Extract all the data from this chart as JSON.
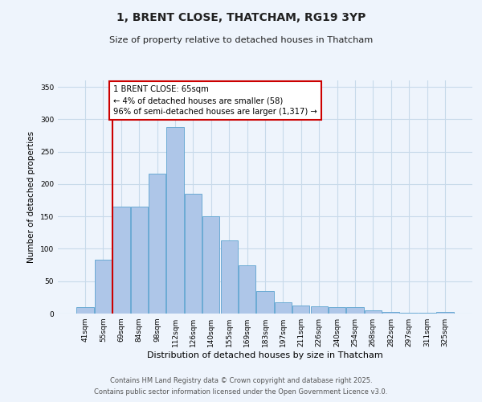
{
  "title": "1, BRENT CLOSE, THATCHAM, RG19 3YP",
  "subtitle": "Size of property relative to detached houses in Thatcham",
  "xlabel": "Distribution of detached houses by size in Thatcham",
  "ylabel": "Number of detached properties",
  "bar_labels": [
    "41sqm",
    "55sqm",
    "69sqm",
    "84sqm",
    "98sqm",
    "112sqm",
    "126sqm",
    "140sqm",
    "155sqm",
    "169sqm",
    "183sqm",
    "197sqm",
    "211sqm",
    "226sqm",
    "240sqm",
    "254sqm",
    "268sqm",
    "282sqm",
    "297sqm",
    "311sqm",
    "325sqm"
  ],
  "bar_values": [
    10,
    83,
    165,
    165,
    216,
    288,
    185,
    150,
    113,
    75,
    35,
    18,
    13,
    11,
    10,
    10,
    5,
    3,
    1,
    1,
    2
  ],
  "bar_color": "#aec6e8",
  "bar_edge_color": "#6aaad4",
  "red_line_x": 1.5,
  "annotation_text": "1 BRENT CLOSE: 65sqm\n← 4% of detached houses are smaller (58)\n96% of semi-detached houses are larger (1,317) →",
  "annotation_box_color": "#ffffff",
  "annotation_box_edge_color": "#cc0000",
  "red_line_color": "#cc0000",
  "ylim": [
    0,
    360
  ],
  "yticks": [
    0,
    50,
    100,
    150,
    200,
    250,
    300,
    350
  ],
  "grid_color": "#c8daea",
  "background_color": "#eef4fc",
  "footer1": "Contains HM Land Registry data © Crown copyright and database right 2025.",
  "footer2": "Contains public sector information licensed under the Open Government Licence v3.0."
}
